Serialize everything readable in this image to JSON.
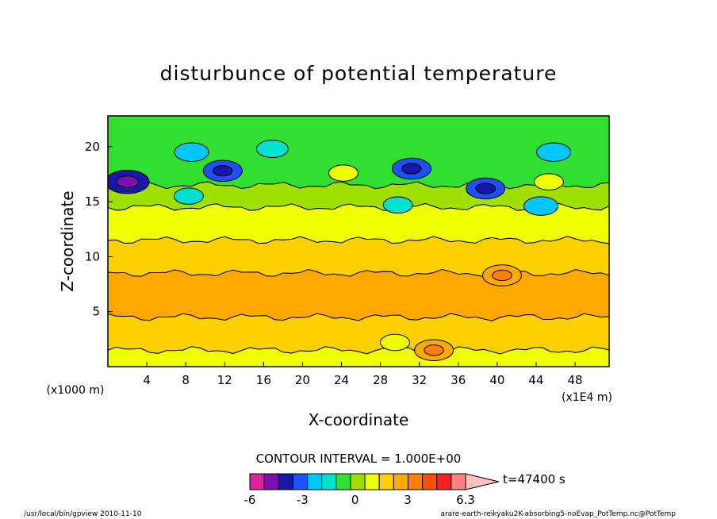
{
  "chart_data": {
    "type": "heatmap",
    "title": "disturbunce of potential temperature",
    "xlabel": "X-coordinate",
    "ylabel": "Z-coordinate",
    "x_unit_label": "(x1E4 m)",
    "y_unit_label": "(x1000 m)",
    "xlim": [
      0,
      51.5
    ],
    "ylim": [
      0,
      22.8
    ],
    "x_ticks": [
      4,
      8,
      12,
      16,
      20,
      24,
      28,
      32,
      36,
      40,
      44,
      48
    ],
    "y_ticks": [
      5,
      10,
      15,
      20
    ],
    "contour_interval_text": "CONTOUR INTERVAL = 1.000E+00",
    "time_text": "t=47400 s",
    "colorbar": {
      "colors": [
        "#e020a0",
        "#7a10b0",
        "#1818a8",
        "#1f50ff",
        "#00c8ff",
        "#00e0d0",
        "#30e030",
        "#a0e000",
        "#f0ff00",
        "#ffd000",
        "#ffa800",
        "#ff8000",
        "#ff5000",
        "#ff2020",
        "#ff8080",
        "#ffc0c0"
      ],
      "tick_labels": [
        "-6",
        "-3",
        "0",
        "3",
        "6.3"
      ],
      "tick_values": [
        -6,
        -3,
        0,
        3,
        6.3
      ]
    },
    "bands": [
      {
        "z_range": [
          0,
          1.5
        ],
        "value": 1.5
      },
      {
        "z_range": [
          1.5,
          4.5
        ],
        "value": 2.5
      },
      {
        "z_range": [
          4.5,
          8.5
        ],
        "value": 3.5
      },
      {
        "z_range": [
          8.5,
          11.5
        ],
        "value": 2.5
      },
      {
        "z_range": [
          11.5,
          14.5
        ],
        "value": 1.5
      },
      {
        "z_range": [
          14.5,
          16.5
        ],
        "value": 0.5
      },
      {
        "z_range": [
          16.5,
          22.8
        ],
        "value": -0.5
      }
    ],
    "features": [
      {
        "x": 2.0,
        "z": 16.8,
        "value": -4.5
      },
      {
        "x": 11.8,
        "z": 17.8,
        "value": -3.5
      },
      {
        "x": 8.6,
        "z": 19.5,
        "value": -2.5
      },
      {
        "x": 16.9,
        "z": 19.8,
        "value": -2.0
      },
      {
        "x": 8.3,
        "z": 15.5,
        "value": -1.5
      },
      {
        "x": 24.2,
        "z": 17.6,
        "value": 1.5
      },
      {
        "x": 31.2,
        "z": 18.0,
        "value": -3.5
      },
      {
        "x": 29.8,
        "z": 14.7,
        "value": -1.5
      },
      {
        "x": 38.8,
        "z": 16.2,
        "value": -3.5
      },
      {
        "x": 45.8,
        "z": 19.5,
        "value": -2.5
      },
      {
        "x": 44.5,
        "z": 14.6,
        "value": -2.5
      },
      {
        "x": 45.3,
        "z": 16.8,
        "value": 1.5
      },
      {
        "x": 40.5,
        "z": 8.3,
        "value": 3.5
      },
      {
        "x": 29.5,
        "z": 2.2,
        "value": 1.5
      },
      {
        "x": 33.5,
        "z": 1.5,
        "value": 3.5
      }
    ]
  },
  "footer_left": "/usr/local/bin/gpview  2010-11-10",
  "footer_right": "arare-earth-reikyaku2K-absorbing5-noEvap_PotTemp.nc@PotTemp"
}
